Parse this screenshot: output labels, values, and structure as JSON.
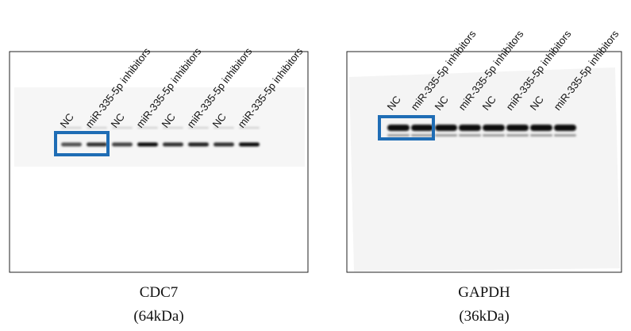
{
  "panels": [
    {
      "lanes": [
        "NC",
        "miR-335-5p inhibitors",
        "NC",
        "miR-335-5p inhibitors",
        "NC",
        "miR-335-5p inhibitors",
        "NC",
        "miR-335-5p inhibitors"
      ],
      "caption": {
        "name": "CDC7",
        "size": "(64kDa)"
      }
    },
    {
      "lanes": [
        "NC",
        "miR-335-5p inhibitors",
        "NC",
        "miR-335-5p inhibitors",
        "NC",
        "miR-335-5p inhibitors",
        "NC",
        "miR-335-5p inhibitors"
      ],
      "caption": {
        "name": "GAPDH",
        "size": "(36kDa)"
      }
    }
  ]
}
